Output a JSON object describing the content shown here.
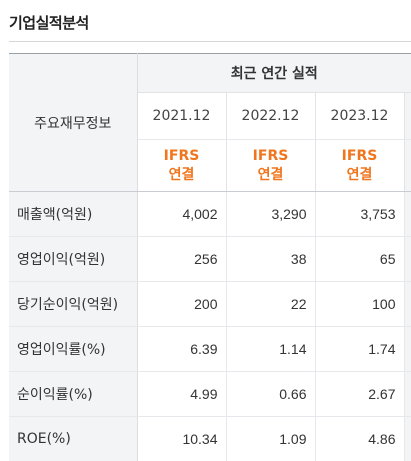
{
  "section": {
    "title": "기업실적분석"
  },
  "table": {
    "label_header": "주요재무정보",
    "group_header": "최근 연간 실적",
    "columns": [
      {
        "year": "2021.12",
        "basis_line1": "IFRS",
        "basis_line2": "연결"
      },
      {
        "year": "2022.12",
        "basis_line1": "IFRS",
        "basis_line2": "연결"
      },
      {
        "year": "2023.12",
        "basis_line1": "IFRS",
        "basis_line2": "연결"
      }
    ],
    "rows": [
      {
        "label": "매출액(억원)",
        "values": [
          "4,002",
          "3,290",
          "3,753"
        ]
      },
      {
        "label": "영업이익(억원)",
        "values": [
          "256",
          "38",
          "65"
        ]
      },
      {
        "label": "당기순이익(억원)",
        "values": [
          "200",
          "22",
          "100"
        ]
      },
      {
        "label": "영업이익률(%)",
        "values": [
          "6.39",
          "1.14",
          "1.74"
        ]
      },
      {
        "label": "순이익률(%)",
        "values": [
          "4.99",
          "0.66",
          "2.67"
        ]
      },
      {
        "label": "ROE(%)",
        "values": [
          "10.34",
          "1.09",
          "4.86"
        ]
      }
    ]
  },
  "colors": {
    "accent": "#f0761e",
    "header_bg": "#f3f4f6",
    "border": "#e6e8eb"
  }
}
